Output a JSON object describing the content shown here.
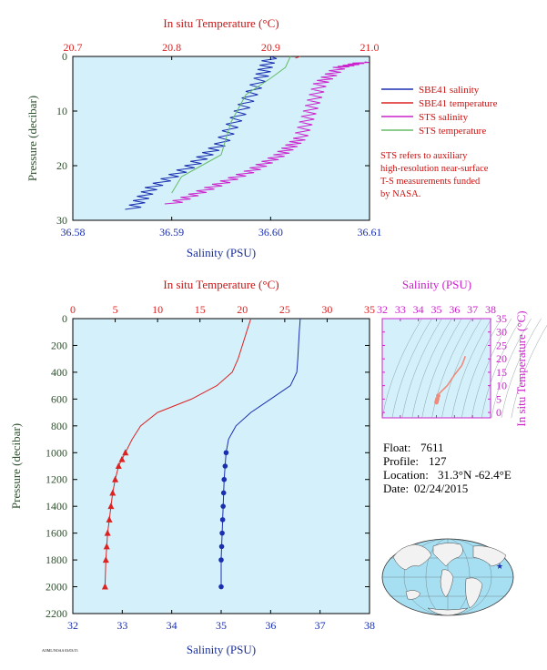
{
  "colors": {
    "panel_bg": "#d4f1fb",
    "red": "#dd2222",
    "blue": "#1a2fb0",
    "magenta": "#cc22cc",
    "green": "#66bb66",
    "salmon": "#f08a7a",
    "axis_dark_green": "#2d4f2d"
  },
  "top_chart": {
    "temp_axis_label": "In situ Temperature (°C)",
    "sal_axis_label": "Salinity (PSU)",
    "p_axis_label": "Pressure (decibar)",
    "legend": [
      {
        "label": "SBE41 salinity",
        "color": "#1a2fb0"
      },
      {
        "label": "SBE41 temperature",
        "color": "#dd2222"
      },
      {
        "label": "STS salinity",
        "color": "#cc22cc"
      },
      {
        "label": "STS temperature",
        "color": "#66bb66"
      }
    ],
    "note": [
      "STS refers to auxiliary",
      "high-resolution near-surface",
      "T-S measurements funded",
      "by NASA."
    ]
  },
  "bottom_chart": {
    "temp_axis_label": "In situ Temperature (°C)",
    "sal_axis_label": "Salinity (PSU)",
    "p_axis_label": "Pressure (decibar)"
  },
  "ts_chart": {
    "sal_axis_label": "Salinity (PSU)",
    "temp_axis_label": "In situ Temperature (°C)"
  },
  "float_info": [
    {
      "label": "Float:",
      "value": "7611"
    },
    {
      "label": "Profile:",
      "value": "127"
    },
    {
      "label": "Location:",
      "value": "31.3°N  -62.4°E"
    },
    {
      "label": "Date:",
      "value": "02/24/2015"
    }
  ],
  "footer_tag": "AOML/NOAA 03/03/15",
  "chart_data": [
    {
      "type": "line",
      "title": "",
      "ylabel": "Pressure (decibar)",
      "ylim": [
        30,
        0
      ],
      "yticks": [
        0,
        10,
        20,
        30
      ],
      "x_bottom": {
        "label": "Salinity (PSU)",
        "lim": [
          36.58,
          36.61
        ],
        "ticks": [
          36.58,
          36.59,
          36.6,
          36.61
        ]
      },
      "x_top": {
        "label": "In situ Temperature (°C)",
        "lim": [
          20.7,
          21.0
        ],
        "ticks": [
          20.7,
          20.8,
          20.9,
          21.0
        ]
      },
      "series": [
        {
          "name": "SBE41 salinity",
          "axis": "bottom",
          "color": "#1a2fb0",
          "x": [
            36.6,
            36.599,
            36.597,
            36.595,
            36.592,
            36.588,
            36.586
          ],
          "y": [
            0,
            4,
            10,
            16,
            20,
            24,
            28
          ]
        },
        {
          "name": "SBE41 temperature",
          "axis": "top",
          "color": "#dd2222",
          "x": [
            20.93,
            20.925
          ],
          "y": [
            0,
            0.3
          ]
        },
        {
          "name": "STS salinity",
          "axis": "bottom",
          "color": "#cc22cc",
          "x": [
            36.6095,
            36.607,
            36.605,
            36.604,
            36.603,
            36.601,
            36.598,
            36.594,
            36.59
          ],
          "y": [
            1,
            2,
            5,
            10,
            15,
            18,
            21,
            24,
            27
          ]
        },
        {
          "name": "STS temperature",
          "axis": "top",
          "color": "#66bb66",
          "x": [
            20.92,
            20.915,
            20.9,
            20.875,
            20.86,
            20.85,
            20.83,
            20.81,
            20.8
          ],
          "y": [
            0,
            2,
            4,
            7,
            12,
            18,
            20,
            22,
            25
          ]
        }
      ]
    },
    {
      "type": "line",
      "title": "",
      "ylabel": "Pressure (decibar)",
      "ylim": [
        2200,
        0
      ],
      "yticks": [
        0,
        200,
        400,
        600,
        800,
        1000,
        1200,
        1400,
        1600,
        1800,
        2000,
        2200
      ],
      "x_bottom": {
        "label": "Salinity (PSU)",
        "lim": [
          32,
          38
        ],
        "ticks": [
          32,
          33,
          34,
          35,
          36,
          37,
          38
        ]
      },
      "x_top": {
        "label": "In situ Temperature (°C)",
        "lim": [
          0,
          35
        ],
        "ticks": [
          0,
          5,
          10,
          15,
          20,
          25,
          30,
          35
        ]
      },
      "series": [
        {
          "name": "Salinity",
          "axis": "bottom",
          "color": "#1a2fb0",
          "x": [
            36.6,
            36.58,
            36.55,
            36.53,
            36.4,
            36.0,
            35.6,
            35.3,
            35.15,
            35.1,
            35.08,
            35.06,
            35.05,
            35.04,
            35.03,
            35.02,
            35.01,
            35.0,
            35.0
          ],
          "y": [
            0,
            100,
            300,
            400,
            500,
            600,
            700,
            800,
            900,
            1000,
            1100,
            1200,
            1300,
            1400,
            1500,
            1600,
            1700,
            1800,
            2000
          ]
        },
        {
          "name": "Temperature",
          "axis": "top",
          "color": "#dd2222",
          "x": [
            21.0,
            20.5,
            19.5,
            18.8,
            17.0,
            14.0,
            10.0,
            8.0,
            7.0,
            6.2,
            5.8,
            5.4,
            5.0,
            4.7,
            4.5,
            4.3,
            4.1,
            4.0,
            3.9,
            3.8
          ],
          "y": [
            0,
            100,
            300,
            400,
            500,
            600,
            700,
            800,
            900,
            1000,
            1050,
            1100,
            1200,
            1300,
            1400,
            1500,
            1600,
            1700,
            1800,
            2000
          ]
        }
      ]
    },
    {
      "type": "scatter",
      "title": "",
      "xlabel": "Salinity (PSU)",
      "ylabel": "In situ Temperature (°C)",
      "xlim": [
        32,
        38
      ],
      "ylim": [
        -2,
        35
      ],
      "xticks": [
        32,
        33,
        34,
        35,
        36,
        37,
        38
      ],
      "yticks": [
        0,
        5,
        10,
        15,
        20,
        25,
        30,
        35
      ],
      "series": [
        {
          "name": "T-S",
          "color": "#f08a7a",
          "x": [
            36.6,
            36.55,
            36.4,
            36.0,
            35.6,
            35.3,
            35.15,
            35.1,
            35.05,
            35.02,
            35.0
          ],
          "y": [
            21.0,
            20.0,
            17.5,
            14.0,
            10.0,
            8.0,
            7.0,
            6.2,
            5.0,
            4.3,
            3.8
          ]
        }
      ]
    }
  ]
}
